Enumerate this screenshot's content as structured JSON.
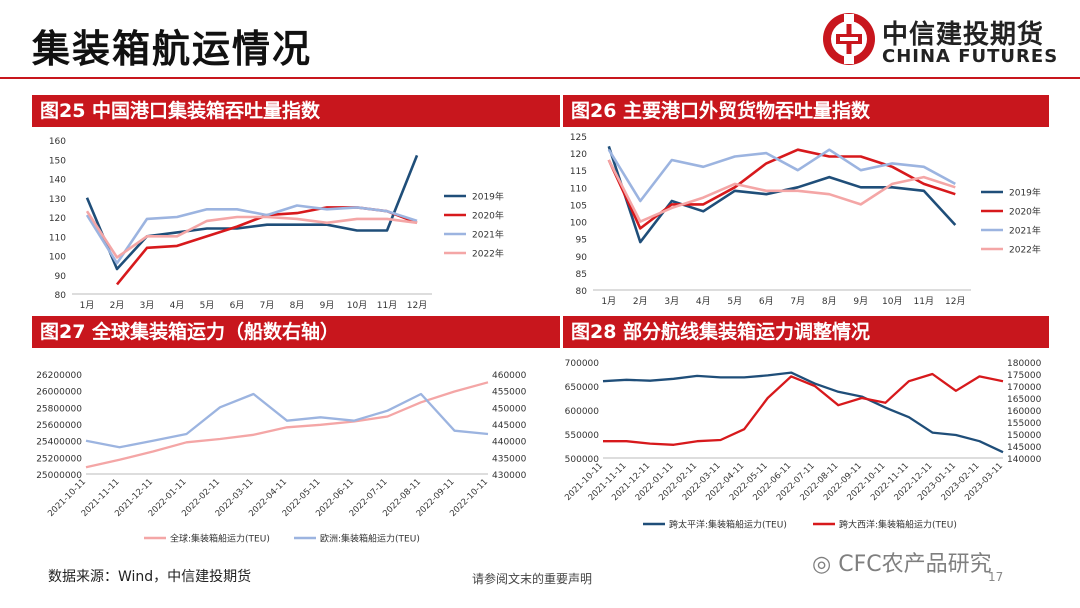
{
  "header": {
    "title": "集装箱航运情况"
  },
  "logo": {
    "cn": "中信建投期货",
    "en": "CHINA FUTURES"
  },
  "footer": {
    "source": "数据来源：Wind，中信建投期货",
    "notice": "请参阅文末的重要声明",
    "page": "17",
    "watermark": "CFC农产品研究"
  },
  "colors": {
    "brand_red": "#c8161d",
    "s2019": "#1f4e79",
    "s2020": "#d7191c",
    "s2021": "#9cb4e0",
    "s2022": "#f4a6a6"
  },
  "chart_data": [
    {
      "id": "fig25",
      "banner": "图25 中国港口集装箱吞吐量指数",
      "type": "line",
      "categories": [
        "1月",
        "2月",
        "3月",
        "4月",
        "5月",
        "6月",
        "7月",
        "8月",
        "9月",
        "10月",
        "11月",
        "12月"
      ],
      "ylim": [
        80,
        160
      ],
      "yticks": [
        80,
        90,
        100,
        110,
        120,
        130,
        140,
        150,
        160
      ],
      "legend": "right",
      "series": [
        {
          "name": "2019年",
          "color": "#1f4e79",
          "values": [
            130,
            93,
            110,
            112,
            114,
            114,
            116,
            116,
            116,
            113,
            113,
            152
          ]
        },
        {
          "name": "2020年",
          "color": "#d7191c",
          "values": [
            null,
            85,
            104,
            105,
            110,
            115,
            121,
            122,
            125,
            125,
            123,
            117
          ]
        },
        {
          "name": "2021年",
          "color": "#9cb4e0",
          "values": [
            121,
            96,
            119,
            120,
            124,
            124,
            121,
            126,
            124,
            125,
            123,
            118
          ]
        },
        {
          "name": "2022年",
          "color": "#f4a6a6",
          "values": [
            123,
            99,
            110,
            110,
            118,
            120,
            120,
            119,
            117,
            119,
            119,
            117
          ]
        }
      ]
    },
    {
      "id": "fig26",
      "banner": "图26 主要港口外贸货物吞吐量指数",
      "type": "line",
      "categories": [
        "1月",
        "2月",
        "3月",
        "4月",
        "5月",
        "6月",
        "7月",
        "8月",
        "9月",
        "10月",
        "11月",
        "12月"
      ],
      "ylim": [
        80,
        125
      ],
      "yticks": [
        80,
        85,
        90,
        95,
        100,
        105,
        110,
        115,
        120,
        125
      ],
      "legend": "right",
      "series": [
        {
          "name": "2019年",
          "color": "#1f4e79",
          "values": [
            122,
            94,
            106,
            103,
            109,
            108,
            110,
            113,
            110,
            110,
            109,
            99
          ]
        },
        {
          "name": "2020年",
          "color": "#d7191c",
          "values": [
            118,
            98,
            105,
            105,
            110,
            117,
            121,
            119,
            119,
            116,
            111,
            108
          ]
        },
        {
          "name": "2021年",
          "color": "#9cb4e0",
          "values": [
            121,
            106,
            118,
            116,
            119,
            120,
            115,
            121,
            115,
            117,
            116,
            111
          ]
        },
        {
          "name": "2022年",
          "color": "#f4a6a6",
          "values": [
            118,
            100,
            104,
            107,
            111,
            109,
            109,
            108,
            105,
            111,
            113,
            110
          ]
        }
      ]
    },
    {
      "id": "fig27",
      "banner": "图27 全球集装箱运力（船数右轴）",
      "type": "line",
      "x": [
        "2021-10-11",
        "2021-11-11",
        "2021-12-11",
        "2022-01-11",
        "2022-02-11",
        "2022-03-11",
        "2022-04-11",
        "2022-05-11",
        "2022-06-11",
        "2022-07-11",
        "2022-08-11",
        "2022-09-11",
        "2022-10-11"
      ],
      "ylim_left": [
        25000000,
        26200000
      ],
      "yticks_left": [
        25000000,
        25200000,
        25400000,
        25600000,
        25800000,
        26000000,
        26200000
      ],
      "ylim_right": [
        430000,
        460000
      ],
      "yticks_right": [
        430000,
        435000,
        440000,
        445000,
        450000,
        455000,
        460000
      ],
      "legend": "bottom",
      "series": [
        {
          "name": "全球:集装箱船运力(TEU)",
          "axis": "left",
          "color": "#f4a6a6",
          "values": [
            25080000,
            25170000,
            25270000,
            25380000,
            25420000,
            25470000,
            25560000,
            25590000,
            25630000,
            25690000,
            25860000,
            25990000,
            26100000
          ]
        },
        {
          "name": "欧洲:集装箱船运力(TEU)",
          "axis": "right",
          "color": "#9cb4e0",
          "values": [
            440000,
            438000,
            440000,
            442000,
            450000,
            454000,
            446000,
            447000,
            446000,
            449000,
            454000,
            443000,
            442000
          ]
        }
      ]
    },
    {
      "id": "fig28",
      "banner": "图28 部分航线集装箱运力调整情况",
      "type": "line",
      "x": [
        "2021-10-11",
        "2021-11-11",
        "2021-12-11",
        "2022-01-11",
        "2022-02-11",
        "2022-03-11",
        "2022-04-11",
        "2022-05-11",
        "2022-06-11",
        "2022-07-11",
        "2022-08-11",
        "2022-09-11",
        "2022-10-11",
        "2022-11-11",
        "2022-12-11",
        "2023-01-11",
        "2023-02-11",
        "2023-03-11"
      ],
      "ylim_left": [
        500000,
        700000
      ],
      "yticks_left": [
        500000,
        550000,
        600000,
        650000,
        700000
      ],
      "ylim_right": [
        140000,
        180000
      ],
      "yticks_right": [
        140000,
        145000,
        150000,
        155000,
        160000,
        165000,
        170000,
        175000,
        180000
      ],
      "legend": "bottom",
      "series": [
        {
          "name": "跨太平洋:集装箱船运力(TEU)",
          "axis": "left",
          "color": "#1f4e79",
          "values": [
            660000,
            663000,
            661000,
            665000,
            671000,
            668000,
            668000,
            672000,
            678000,
            655000,
            638000,
            628000,
            605000,
            585000,
            553000,
            548000,
            535000,
            512000
          ]
        },
        {
          "name": "跨大西洋:集装箱船运力(TEU)",
          "axis": "right",
          "color": "#d7191c",
          "values": [
            147000,
            147000,
            146000,
            145500,
            147000,
            147500,
            152000,
            165000,
            174000,
            170000,
            162000,
            165000,
            163000,
            172000,
            175000,
            168000,
            174000,
            172000
          ]
        }
      ]
    }
  ]
}
